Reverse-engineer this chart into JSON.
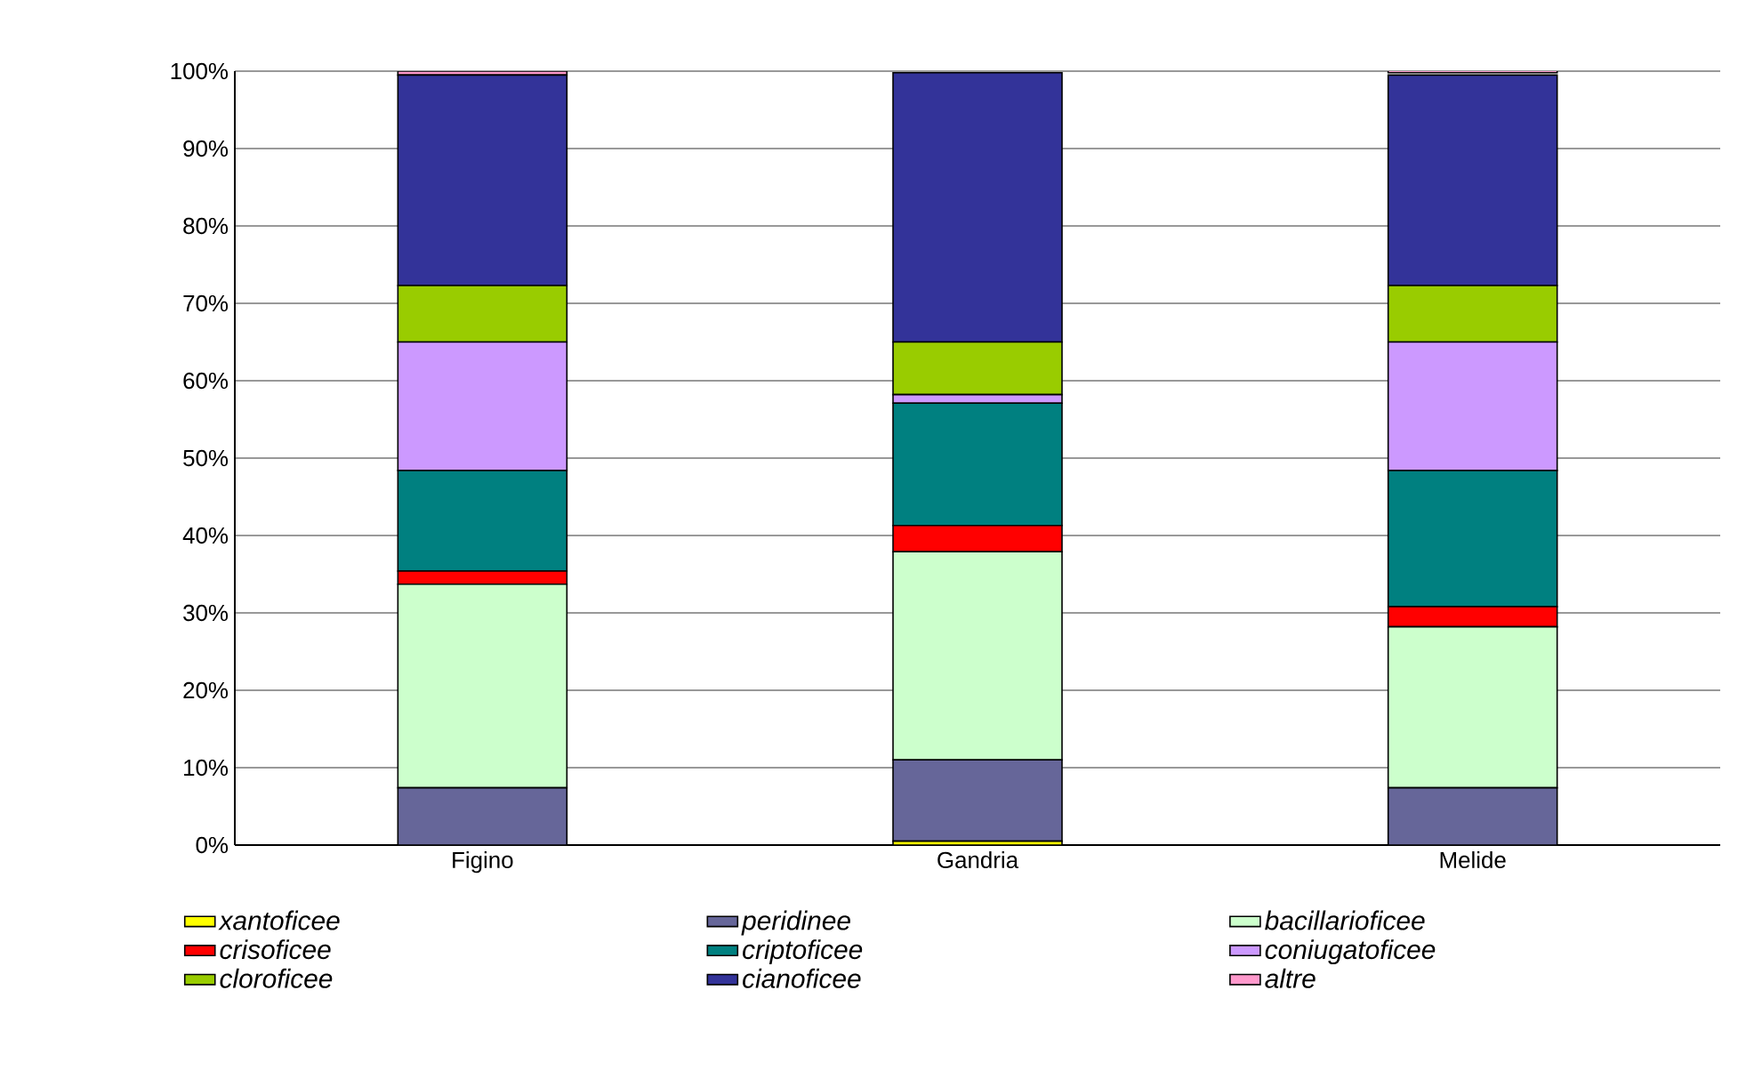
{
  "chart_data": {
    "type": "bar",
    "stacked": true,
    "categories": [
      "Figino",
      "Gandria",
      "Melide"
    ],
    "series": [
      {
        "name": "xantoficee",
        "color": "#ffff00",
        "values": [
          0,
          0.5,
          0
        ]
      },
      {
        "name": "peridinee",
        "color": "#666699",
        "values": [
          7.4,
          10.5,
          7.4
        ]
      },
      {
        "name": "bacillarioficee",
        "color": "#ccffcc",
        "values": [
          26.3,
          26.9,
          20.8
        ]
      },
      {
        "name": "crisoficee",
        "color": "#ff0000",
        "values": [
          1.7,
          3.4,
          2.6
        ]
      },
      {
        "name": "criptoficee",
        "color": "#008080",
        "values": [
          13.0,
          15.8,
          17.6
        ]
      },
      {
        "name": "coniugatoficee",
        "color": "#cc99ff",
        "values": [
          16.6,
          1.1,
          16.6
        ]
      },
      {
        "name": "cloroficee",
        "color": "#99cc00",
        "values": [
          7.3,
          6.8,
          7.3
        ]
      },
      {
        "name": "cianoficee",
        "color": "#333399",
        "values": [
          27.2,
          34.8,
          27.2
        ]
      },
      {
        "name": "altre",
        "color": "#ff99cc",
        "values": [
          0.5,
          null,
          0.5
        ]
      }
    ],
    "ylim": [
      0,
      100
    ],
    "yticks": [
      {
        "value": 0,
        "label": "0%"
      },
      {
        "value": 10,
        "label": "10%"
      },
      {
        "value": 20,
        "label": "20%"
      },
      {
        "value": 30,
        "label": "30%"
      },
      {
        "value": 40,
        "label": "40%"
      },
      {
        "value": 50,
        "label": "50%"
      },
      {
        "value": 60,
        "label": "60%"
      },
      {
        "value": 70,
        "label": "70%"
      },
      {
        "value": 80,
        "label": "80%"
      },
      {
        "value": 90,
        "label": "90%"
      },
      {
        "value": 100,
        "label": "100%"
      }
    ],
    "grid": "y",
    "legend": "bottom"
  }
}
